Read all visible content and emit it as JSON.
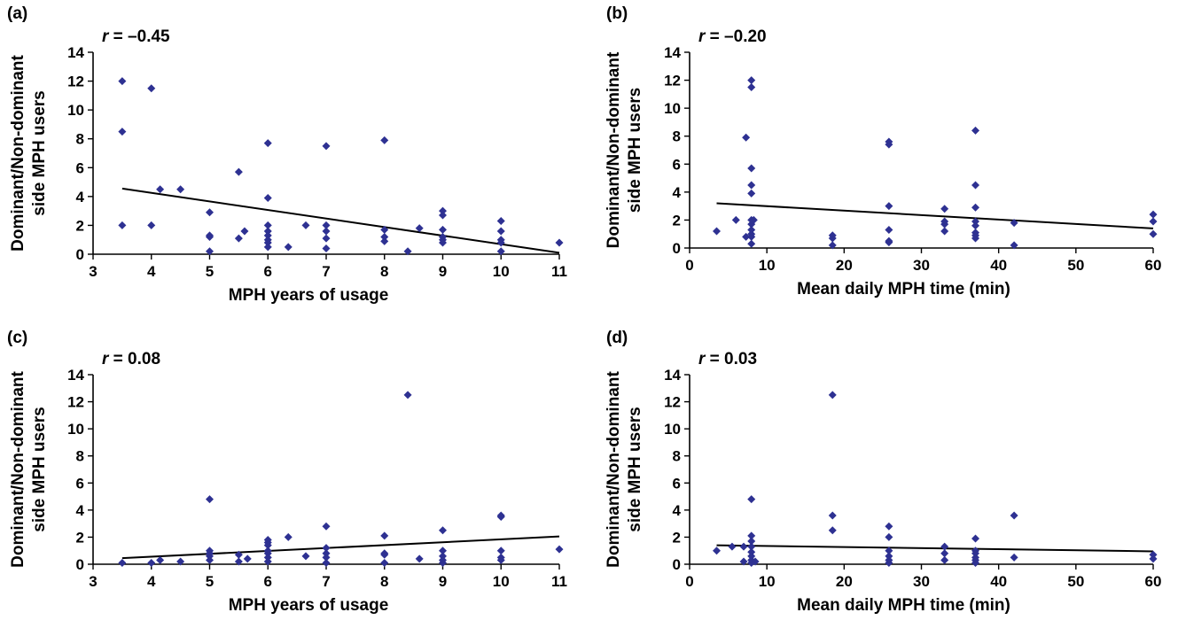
{
  "colors": {
    "marker": "#2e3192",
    "fit_line": "#000000",
    "axis": "#000000"
  },
  "chart_data": [
    {
      "id": "a",
      "type": "scatter",
      "panel_label": "(a)",
      "r_prefix": "r",
      "r_value": "= –0.45",
      "xlabel": "MPH years of usage",
      "ylabel_line1": "Dominant/Non-dominant",
      "ylabel_line2": "side MPH users",
      "xlim": [
        3,
        11
      ],
      "ylim": [
        0,
        14
      ],
      "xticks": [
        "3",
        "4",
        "5",
        "6",
        "7",
        "8",
        "9",
        "10",
        "11"
      ],
      "yticks": [
        "0",
        "2",
        "4",
        "6",
        "8",
        "10",
        "12",
        "14"
      ],
      "points": [
        [
          3.5,
          12.0
        ],
        [
          3.5,
          8.5
        ],
        [
          3.5,
          2.0
        ],
        [
          4.0,
          11.5
        ],
        [
          4.0,
          2.0
        ],
        [
          4.15,
          4.5
        ],
        [
          4.5,
          4.5
        ],
        [
          5.0,
          2.9
        ],
        [
          5.0,
          1.3
        ],
        [
          5.0,
          1.2
        ],
        [
          5.0,
          0.2
        ],
        [
          5.5,
          5.7
        ],
        [
          5.5,
          1.1
        ],
        [
          5.6,
          1.6
        ],
        [
          6.0,
          7.7
        ],
        [
          6.0,
          3.9
        ],
        [
          6.0,
          2.0
        ],
        [
          6.0,
          1.6
        ],
        [
          6.0,
          1.3
        ],
        [
          6.0,
          1.0
        ],
        [
          6.0,
          0.8
        ],
        [
          6.0,
          0.5
        ],
        [
          6.35,
          0.5
        ],
        [
          6.65,
          2.0
        ],
        [
          7.0,
          7.5
        ],
        [
          7.0,
          2.0
        ],
        [
          7.0,
          1.6
        ],
        [
          7.0,
          1.1
        ],
        [
          7.0,
          0.4
        ],
        [
          8.0,
          7.9
        ],
        [
          8.0,
          1.7
        ],
        [
          8.0,
          1.2
        ],
        [
          8.0,
          0.9
        ],
        [
          8.4,
          0.2
        ],
        [
          8.6,
          1.8
        ],
        [
          9.0,
          3.0
        ],
        [
          9.0,
          2.7
        ],
        [
          9.0,
          1.7
        ],
        [
          9.0,
          1.2
        ],
        [
          9.0,
          1.0
        ],
        [
          9.0,
          0.8
        ],
        [
          10.0,
          2.3
        ],
        [
          10.0,
          1.6
        ],
        [
          10.0,
          1.0
        ],
        [
          10.0,
          0.8
        ],
        [
          10.0,
          0.2
        ],
        [
          11.0,
          0.8
        ]
      ],
      "fit_line": {
        "type": "linear",
        "x": [
          3.5,
          11
        ],
        "y": [
          4.55,
          0.1
        ]
      }
    },
    {
      "id": "b",
      "type": "scatter",
      "panel_label": "(b)",
      "r_prefix": "r",
      "r_value": "= –0.20",
      "xlabel": "Mean daily MPH time (min)",
      "ylabel_line1": "Dominant/Non-dominant",
      "ylabel_line2": "side MPH users",
      "xlim": [
        0,
        60
      ],
      "ylim": [
        0,
        14
      ],
      "xticks": [
        "0",
        "10",
        "20",
        "30",
        "40",
        "50",
        "60"
      ],
      "yticks": [
        "0",
        "2",
        "4",
        "6",
        "8",
        "10",
        "12",
        "14"
      ],
      "points": [
        [
          3.5,
          1.2
        ],
        [
          6.0,
          2.0
        ],
        [
          7.3,
          7.9
        ],
        [
          7.3,
          0.8
        ],
        [
          8.0,
          12.0
        ],
        [
          8.0,
          11.5
        ],
        [
          8.0,
          5.7
        ],
        [
          8.0,
          4.5
        ],
        [
          8.0,
          3.9
        ],
        [
          8.0,
          2.0
        ],
        [
          8.0,
          1.7
        ],
        [
          8.0,
          1.3
        ],
        [
          8.0,
          1.0
        ],
        [
          8.0,
          0.8
        ],
        [
          8.0,
          0.3
        ],
        [
          8.3,
          2.0
        ],
        [
          18.5,
          0.9
        ],
        [
          18.5,
          0.7
        ],
        [
          18.5,
          0.2
        ],
        [
          25.8,
          7.6
        ],
        [
          25.8,
          7.4
        ],
        [
          25.8,
          3.0
        ],
        [
          25.8,
          1.3
        ],
        [
          25.8,
          0.5
        ],
        [
          25.8,
          0.4
        ],
        [
          33.0,
          2.8
        ],
        [
          33.0,
          1.9
        ],
        [
          33.0,
          1.7
        ],
        [
          33.0,
          1.2
        ],
        [
          37.0,
          8.4
        ],
        [
          37.0,
          4.5
        ],
        [
          37.0,
          2.9
        ],
        [
          37.0,
          1.9
        ],
        [
          37.0,
          1.6
        ],
        [
          37.0,
          1.1
        ],
        [
          37.0,
          0.9
        ],
        [
          37.0,
          0.7
        ],
        [
          42.0,
          1.8
        ],
        [
          42.0,
          0.2
        ],
        [
          60.0,
          2.4
        ],
        [
          60.0,
          1.9
        ],
        [
          60.0,
          1.0
        ]
      ],
      "fit_line": {
        "type": "linear",
        "x": [
          3.5,
          60
        ],
        "y": [
          3.2,
          1.4
        ]
      }
    },
    {
      "id": "c",
      "type": "scatter",
      "panel_label": "(c)",
      "r_prefix": "r",
      "r_value": "= 0.08",
      "xlabel": "MPH years of usage",
      "ylabel_line1": "Dominant/Non-dominant",
      "ylabel_line2": "side MPH users",
      "xlim": [
        3,
        11
      ],
      "ylim": [
        0,
        14
      ],
      "xticks": [
        "3",
        "4",
        "5",
        "6",
        "7",
        "8",
        "9",
        "10",
        "11"
      ],
      "yticks": [
        "0",
        "2",
        "4",
        "6",
        "8",
        "10",
        "12",
        "14"
      ],
      "points": [
        [
          3.5,
          0.1
        ],
        [
          4.0,
          0.1
        ],
        [
          4.15,
          0.3
        ],
        [
          4.5,
          0.2
        ],
        [
          5.0,
          4.8
        ],
        [
          5.0,
          1.0
        ],
        [
          5.0,
          0.8
        ],
        [
          5.0,
          0.6
        ],
        [
          5.0,
          0.3
        ],
        [
          5.5,
          0.7
        ],
        [
          5.5,
          0.2
        ],
        [
          5.65,
          0.4
        ],
        [
          6.0,
          1.8
        ],
        [
          6.0,
          1.6
        ],
        [
          6.0,
          1.4
        ],
        [
          6.0,
          1.0
        ],
        [
          6.0,
          0.8
        ],
        [
          6.0,
          0.5
        ],
        [
          6.0,
          0.2
        ],
        [
          6.35,
          2.0
        ],
        [
          6.65,
          0.6
        ],
        [
          7.0,
          2.8
        ],
        [
          7.0,
          1.2
        ],
        [
          7.0,
          0.8
        ],
        [
          7.0,
          0.5
        ],
        [
          7.0,
          0.1
        ],
        [
          8.0,
          2.1
        ],
        [
          8.0,
          0.8
        ],
        [
          8.0,
          0.7
        ],
        [
          8.0,
          0.1
        ],
        [
          8.4,
          12.5
        ],
        [
          8.6,
          0.4
        ],
        [
          9.0,
          2.5
        ],
        [
          9.0,
          1.0
        ],
        [
          9.0,
          0.6
        ],
        [
          9.0,
          0.3
        ],
        [
          9.0,
          0.1
        ],
        [
          10.0,
          3.6
        ],
        [
          10.0,
          3.5
        ],
        [
          10.0,
          1.0
        ],
        [
          10.0,
          0.5
        ],
        [
          10.0,
          0.3
        ],
        [
          11.0,
          1.1
        ]
      ],
      "fit_line": {
        "type": "linear",
        "x": [
          3.5,
          11
        ],
        "y": [
          0.45,
          2.05
        ]
      }
    },
    {
      "id": "d",
      "type": "scatter",
      "panel_label": "(d)",
      "r_prefix": "r",
      "r_value": "= 0.03",
      "xlabel": "Mean daily MPH time (min)",
      "ylabel_line1": "Dominant/Non-dominant",
      "ylabel_line2": "side MPH users",
      "xlim": [
        0,
        60
      ],
      "ylim": [
        0,
        14
      ],
      "xticks": [
        "0",
        "10",
        "20",
        "30",
        "40",
        "50",
        "60"
      ],
      "yticks": [
        "0",
        "2",
        "4",
        "6",
        "8",
        "10",
        "12",
        "14"
      ],
      "points": [
        [
          3.5,
          1.0
        ],
        [
          5.5,
          1.3
        ],
        [
          7.0,
          1.3
        ],
        [
          7.0,
          0.2
        ],
        [
          8.0,
          4.8
        ],
        [
          8.0,
          2.1
        ],
        [
          8.0,
          1.7
        ],
        [
          8.0,
          1.3
        ],
        [
          8.0,
          0.9
        ],
        [
          8.0,
          0.6
        ],
        [
          8.0,
          0.3
        ],
        [
          8.0,
          0.1
        ],
        [
          8.5,
          0.2
        ],
        [
          18.5,
          12.5
        ],
        [
          18.5,
          3.6
        ],
        [
          18.5,
          2.5
        ],
        [
          25.8,
          2.8
        ],
        [
          25.8,
          2.0
        ],
        [
          25.8,
          1.0
        ],
        [
          25.8,
          0.6
        ],
        [
          25.8,
          0.3
        ],
        [
          25.8,
          0.1
        ],
        [
          33.0,
          1.3
        ],
        [
          33.0,
          0.8
        ],
        [
          33.0,
          0.3
        ],
        [
          37.0,
          1.9
        ],
        [
          37.0,
          1.0
        ],
        [
          37.0,
          0.8
        ],
        [
          37.0,
          0.5
        ],
        [
          37.0,
          0.3
        ],
        [
          37.0,
          0.1
        ],
        [
          42.0,
          3.6
        ],
        [
          42.0,
          0.5
        ],
        [
          60.0,
          0.7
        ],
        [
          60.0,
          0.4
        ]
      ],
      "fit_line": {
        "type": "linear",
        "x": [
          3.5,
          60
        ],
        "y": [
          1.4,
          0.95
        ]
      }
    }
  ]
}
